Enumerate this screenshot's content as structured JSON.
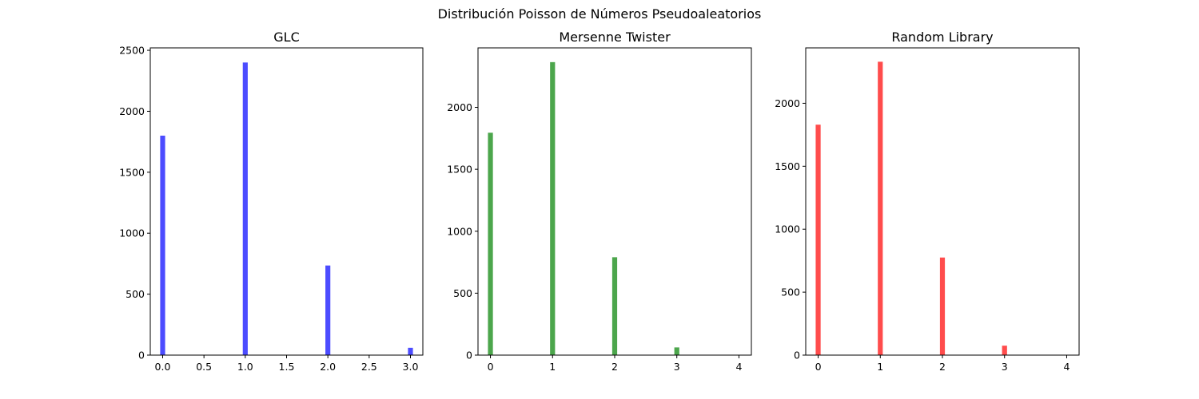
{
  "figure": {
    "suptitle": "Distribución Poisson de Números Pseudoaleatorios"
  },
  "chart_data": [
    {
      "type": "bar",
      "title": "GLC",
      "color": "#0000ff",
      "x": [
        0,
        1,
        2,
        3
      ],
      "values": [
        1800,
        2400,
        735,
        60
      ],
      "xlim": [
        -0.15,
        3.15
      ],
      "ylim": [
        0,
        2520
      ],
      "xticks": [
        0.0,
        0.5,
        1.0,
        1.5,
        2.0,
        2.5,
        3.0
      ],
      "xtick_labels": [
        "0.0",
        "0.5",
        "1.0",
        "1.5",
        "2.0",
        "2.5",
        "3.0"
      ],
      "yticks": [
        0,
        500,
        1000,
        1500,
        2000,
        2500
      ],
      "ytick_labels": [
        "0",
        "500",
        "1000",
        "1500",
        "2000",
        "2500"
      ],
      "bar_width": 0.06,
      "opacity": 0.7
    },
    {
      "type": "bar",
      "title": "Mersenne Twister",
      "color": "#008000",
      "x": [
        0,
        1,
        2,
        3,
        4
      ],
      "values": [
        1795,
        2365,
        790,
        62,
        0
      ],
      "xlim": [
        -0.2,
        4.2
      ],
      "ylim": [
        0,
        2480
      ],
      "xticks": [
        0,
        1,
        2,
        3,
        4
      ],
      "xtick_labels": [
        "0",
        "1",
        "2",
        "3",
        "4"
      ],
      "yticks": [
        0,
        500,
        1000,
        1500,
        2000
      ],
      "ytick_labels": [
        "0",
        "500",
        "1000",
        "1500",
        "2000"
      ],
      "bar_width": 0.08,
      "opacity": 0.7
    },
    {
      "type": "bar",
      "title": "Random Library",
      "color": "#ff0000",
      "x": [
        0,
        1,
        2,
        3,
        4
      ],
      "values": [
        1830,
        2330,
        775,
        75,
        0
      ],
      "xlim": [
        -0.2,
        4.2
      ],
      "ylim": [
        0,
        2440
      ],
      "xticks": [
        0,
        1,
        2,
        3,
        4
      ],
      "xtick_labels": [
        "0",
        "1",
        "2",
        "3",
        "4"
      ],
      "yticks": [
        0,
        500,
        1000,
        1500,
        2000
      ],
      "ytick_labels": [
        "0",
        "500",
        "1000",
        "1500",
        "2000"
      ],
      "bar_width": 0.08,
      "opacity": 0.7
    }
  ]
}
